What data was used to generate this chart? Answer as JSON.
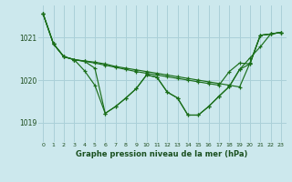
{
  "title": "Graphe pression niveau de la mer (hPa)",
  "bg_color": "#cce8ed",
  "grid_color": "#aad0d8",
  "line_color": "#1a6e1a",
  "xlim": [
    -0.5,
    23.5
  ],
  "ylim": [
    1018.55,
    1021.75
  ],
  "yticks": [
    1019,
    1020,
    1021
  ],
  "xticks": [
    0,
    1,
    2,
    3,
    4,
    5,
    6,
    7,
    8,
    9,
    10,
    11,
    12,
    13,
    14,
    15,
    16,
    17,
    18,
    19,
    20,
    21,
    22,
    23
  ],
  "series": [
    [
      1021.55,
      1020.85,
      1020.55,
      1020.48,
      1020.45,
      1020.42,
      1020.38,
      1020.32,
      1020.28,
      1020.24,
      1020.2,
      1020.16,
      1020.12,
      1020.08,
      1020.04,
      1020.0,
      1019.96,
      1019.92,
      1019.88,
      1019.84,
      1020.4,
      1021.05,
      1021.08,
      1021.12
    ],
    [
      1021.55,
      1020.85,
      1020.55,
      1020.48,
      1020.44,
      1020.4,
      1020.35,
      1020.3,
      1020.25,
      1020.2,
      1020.16,
      1020.12,
      1020.08,
      1020.04,
      1020.0,
      1019.96,
      1019.92,
      1019.88,
      1020.2,
      1020.4,
      1020.38,
      1021.05,
      1021.08,
      1021.12
    ],
    [
      1021.55,
      1020.85,
      1020.55,
      1020.48,
      1020.44,
      1020.28,
      1019.22,
      1019.38,
      1019.58,
      1019.8,
      1020.12,
      1020.07,
      1019.72,
      1019.58,
      1019.18,
      1019.18,
      1019.38,
      1019.62,
      1019.85,
      1020.25,
      1020.52,
      1020.78,
      1021.08,
      1021.12
    ],
    [
      1021.55,
      1020.85,
      1020.55,
      1020.48,
      1020.22,
      1019.88,
      1019.22,
      1019.38,
      1019.58,
      1019.8,
      1020.12,
      1020.07,
      1019.72,
      1019.58,
      1019.18,
      1019.18,
      1019.38,
      1019.62,
      1019.85,
      1020.25,
      1020.38,
      1021.05,
      1021.08,
      1021.12
    ]
  ]
}
